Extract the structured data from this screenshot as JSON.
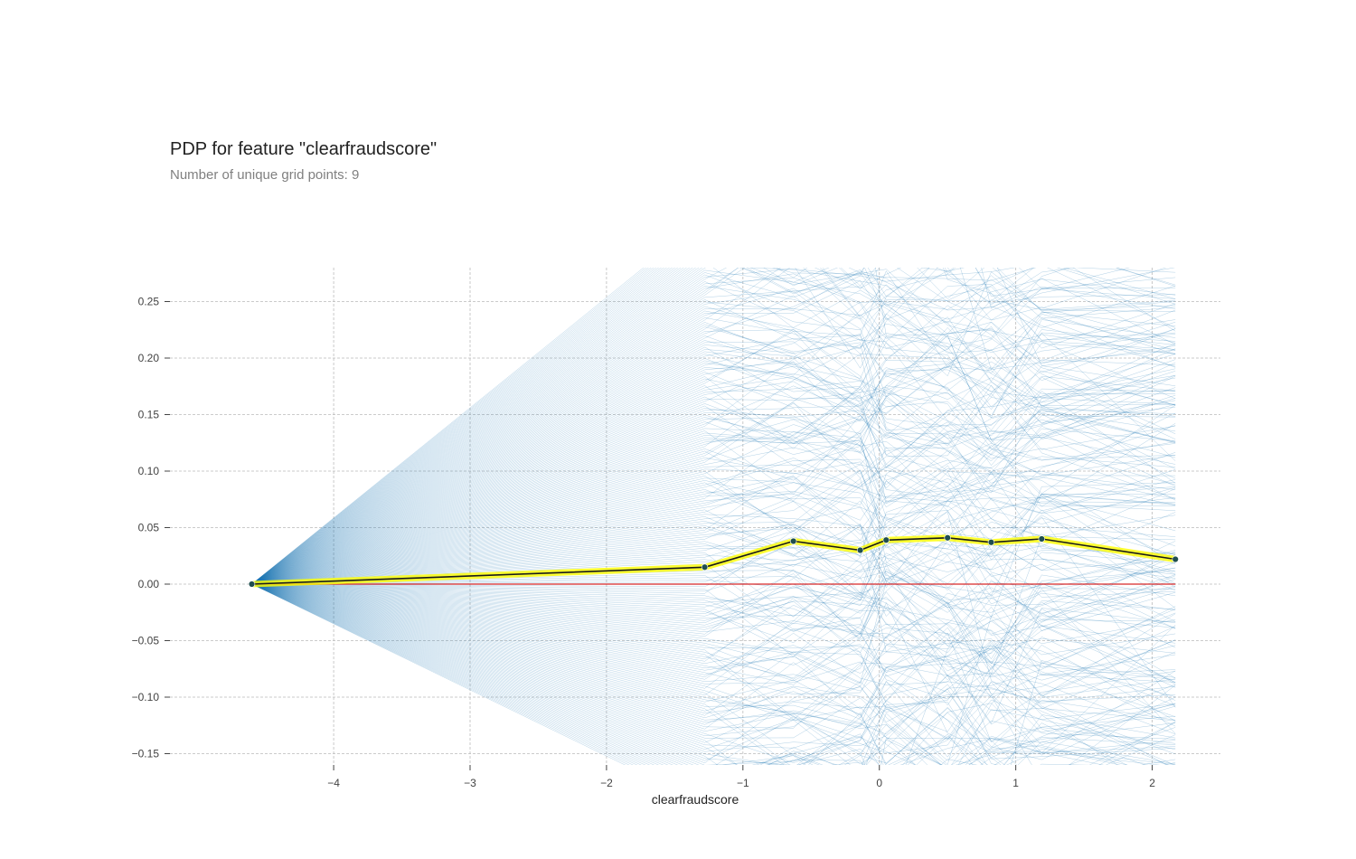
{
  "chart_data": {
    "type": "line",
    "title": "PDP for feature \"clearfraudscore\"",
    "subtitle": "Number of unique grid points: 9",
    "xlabel": "clearfraudscore",
    "ylabel": "",
    "xlim": [
      -5.2,
      2.5
    ],
    "ylim": [
      -0.16,
      0.28
    ],
    "x_ticks": [
      -4,
      -3,
      -2,
      -1,
      0,
      1,
      2
    ],
    "y_ticks": [
      0.25,
      0.2,
      0.15,
      0.1,
      0.05,
      0.0,
      -0.05,
      -0.1,
      -0.15
    ],
    "x_tick_labels": [
      "−4",
      "−3",
      "−2",
      "−1",
      "0",
      "1",
      "2"
    ],
    "y_tick_labels": [
      "0.25",
      "0.20",
      "0.15",
      "0.10",
      "0.05",
      "0.00",
      "−0.05",
      "−0.10",
      "−0.15"
    ],
    "grid": true,
    "series": [
      {
        "role": "pdp",
        "x": [
          -4.6,
          -1.28,
          -0.63,
          -0.14,
          0.05,
          0.5,
          0.82,
          1.19,
          2.17
        ],
        "y": [
          0.0,
          0.015,
          0.038,
          0.03,
          0.039,
          0.041,
          0.037,
          0.04,
          0.022
        ]
      }
    ],
    "baseline": 0.0,
    "colors": {
      "ice_lines": "#1f77b4",
      "pdp_line": "#1a1a1a",
      "pdp_band": "#ffff00",
      "pdp_marker": "#1f4e4e",
      "baseline": "#d62728",
      "grid": "#bbbbbb"
    }
  }
}
